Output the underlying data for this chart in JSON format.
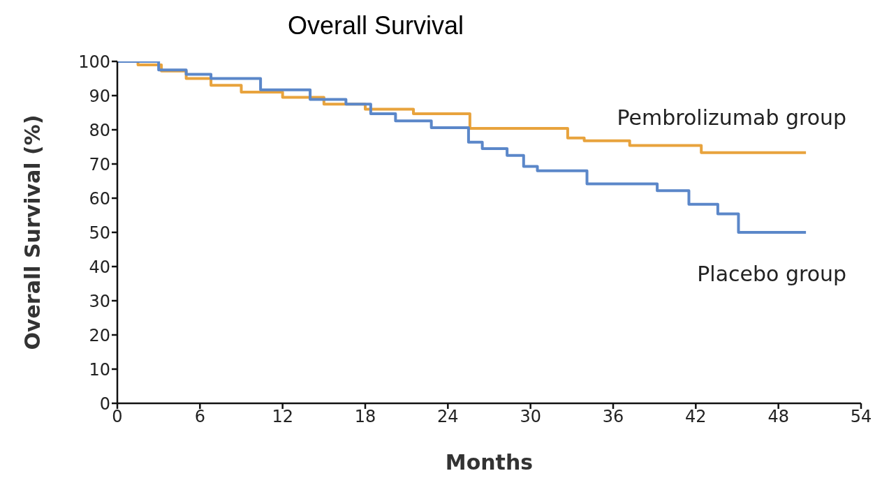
{
  "chart_data": {
    "type": "step",
    "title": "Overall Survival",
    "xlabel": "Months",
    "ylabel": "Overall Survival (%)",
    "xlim": [
      0,
      54
    ],
    "xticks": [
      0,
      6,
      12,
      18,
      24,
      30,
      36,
      42,
      48,
      54
    ],
    "ylim": [
      0,
      100
    ],
    "yticks": [
      0,
      10,
      20,
      30,
      40,
      50,
      60,
      70,
      80,
      90,
      100
    ],
    "grid": false,
    "legend": false,
    "marker": "none",
    "line_style": "solid",
    "series": [
      {
        "name": "Pembrolizumab group",
        "color": "#e8a33d",
        "x": [
          0,
          1.5,
          3.2,
          5,
          6.8,
          9,
          12,
          15,
          18,
          21.5,
          25.6,
          32.7,
          33.9,
          37.2,
          42.4,
          50
        ],
        "values": [
          100,
          99,
          97.2,
          95,
          93,
          91,
          89.5,
          87.5,
          86,
          84.7,
          80.4,
          77.6,
          76.8,
          75.4,
          73.3,
          73.3
        ]
      },
      {
        "name": "Placebo group",
        "color": "#5b87c9",
        "x": [
          0,
          3,
          5,
          6.8,
          10.4,
          14,
          16.6,
          18.4,
          20.2,
          22.8,
          25.5,
          26.5,
          28.3,
          29.5,
          30.5,
          34.1,
          39.2,
          41.5,
          43.6,
          45.1,
          50
        ],
        "values": [
          100,
          97.5,
          96.2,
          95,
          91.7,
          88.9,
          87.5,
          84.7,
          82.6,
          80.6,
          76.4,
          74.5,
          72.5,
          69.3,
          68,
          64.2,
          62.2,
          58.2,
          55.4,
          50,
          50
        ]
      }
    ]
  }
}
